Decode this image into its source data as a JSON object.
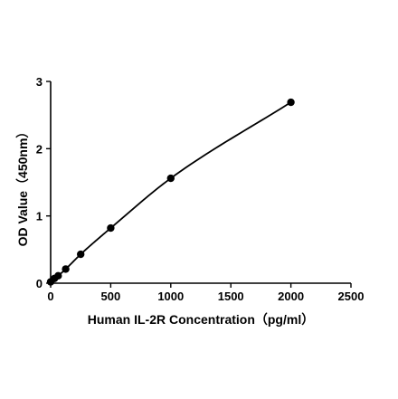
{
  "chart_data": {
    "type": "scatter",
    "title": "",
    "xlabel": "Human IL-2R Concentration（pg/ml）",
    "ylabel": "OD Value（450nm）",
    "xlim": [
      0,
      2500
    ],
    "ylim": [
      0,
      3
    ],
    "x_ticks": [
      0,
      500,
      1000,
      1500,
      2000,
      2500
    ],
    "y_ticks": [
      0,
      1,
      2,
      3
    ],
    "x_tick_labels": [
      "0",
      "500",
      "1000",
      "1500",
      "2000",
      "2500"
    ],
    "y_tick_labels": [
      "0",
      "1",
      "2",
      "3"
    ],
    "grid": false,
    "fit_curve": true,
    "series": [
      {
        "x": [
          0,
          31.25,
          62.5,
          125,
          250,
          500,
          1000,
          2000
        ],
        "y": [
          0.02,
          0.07,
          0.11,
          0.21,
          0.43,
          0.82,
          1.56,
          2.69
        ]
      }
    ],
    "colors": {
      "line": "#000000",
      "points": "#000000",
      "axes": "#000000"
    }
  }
}
